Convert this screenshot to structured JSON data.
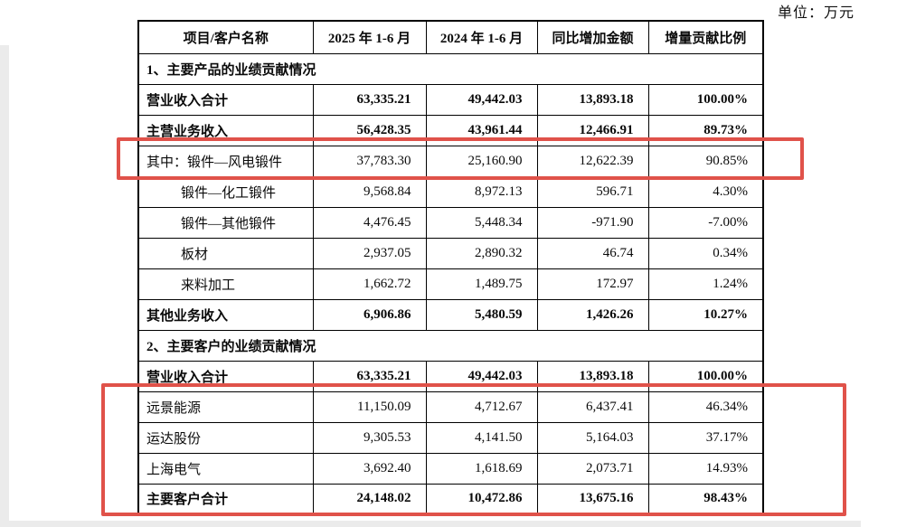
{
  "unit_label": "单位：万元",
  "table": {
    "headers": [
      "项目/客户名称",
      "2025 年 1-6 月",
      "2024 年 1-6 月",
      "同比增加金额",
      "增量贡献比例"
    ],
    "rows": [
      {
        "type": "section",
        "label": "1、主要产品的业绩贡献情况"
      },
      {
        "type": "data",
        "bold": true,
        "indent": 0,
        "cells": [
          "营业收入合计",
          "63,335.21",
          "49,442.03",
          "13,893.18",
          "100.00%"
        ]
      },
      {
        "type": "data",
        "bold": true,
        "indent": 0,
        "cells": [
          "主营业务收入",
          "56,428.35",
          "43,961.44",
          "12,466.91",
          "89.73%"
        ]
      },
      {
        "type": "data",
        "bold": false,
        "indent": 0,
        "cells": [
          "其中：锻件—风电锻件",
          "37,783.30",
          "25,160.90",
          "12,622.39",
          "90.85%"
        ]
      },
      {
        "type": "data",
        "bold": false,
        "indent": 1,
        "cells": [
          "锻件—化工锻件",
          "9,568.84",
          "8,972.13",
          "596.71",
          "4.30%"
        ]
      },
      {
        "type": "data",
        "bold": false,
        "indent": 1,
        "cells": [
          "锻件—其他锻件",
          "4,476.45",
          "5,448.34",
          "-971.90",
          "-7.00%"
        ]
      },
      {
        "type": "data",
        "bold": false,
        "indent": 1,
        "cells": [
          "板材",
          "2,937.05",
          "2,890.32",
          "46.74",
          "0.34%"
        ]
      },
      {
        "type": "data",
        "bold": false,
        "indent": 1,
        "cells": [
          "来料加工",
          "1,662.72",
          "1,489.75",
          "172.97",
          "1.24%"
        ]
      },
      {
        "type": "data",
        "bold": true,
        "indent": 0,
        "cells": [
          "其他业务收入",
          "6,906.86",
          "5,480.59",
          "1,426.26",
          "10.27%"
        ]
      },
      {
        "type": "section",
        "label": "2、主要客户的业绩贡献情况"
      },
      {
        "type": "data",
        "bold": true,
        "indent": 0,
        "cells": [
          "营业收入合计",
          "63,335.21",
          "49,442.03",
          "13,893.18",
          "100.00%"
        ]
      },
      {
        "type": "data",
        "bold": false,
        "indent": 0,
        "cells": [
          "远景能源",
          "11,150.09",
          "4,712.67",
          "6,437.41",
          "46.34%"
        ]
      },
      {
        "type": "data",
        "bold": false,
        "indent": 0,
        "cells": [
          "运达股份",
          "9,305.53",
          "4,141.50",
          "5,164.03",
          "37.17%"
        ]
      },
      {
        "type": "data",
        "bold": false,
        "indent": 0,
        "cells": [
          "上海电气",
          "3,692.40",
          "1,618.69",
          "2,073.71",
          "14.93%"
        ]
      },
      {
        "type": "data",
        "bold": true,
        "indent": 0,
        "cells": [
          "主要客户合计",
          "24,148.02",
          "10,472.86",
          "13,675.16",
          "98.43%"
        ]
      }
    ]
  },
  "annotations": {
    "highlight_color": "#e0524a",
    "box1_target": "其中：锻件—风电锻件",
    "box2_target": "远景能源 / 运达股份 / 上海电气 / 主要客户合计"
  }
}
